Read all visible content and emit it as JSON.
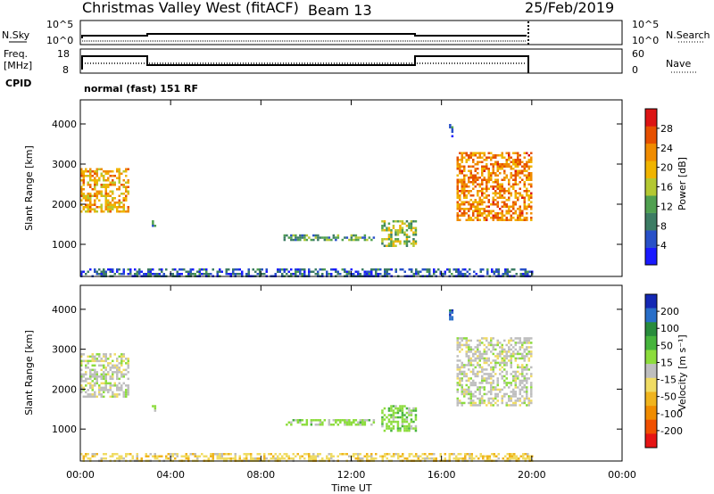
{
  "header": {
    "station": "Christmas Valley West (fitACF)",
    "beam": "Beam 13",
    "date": "25/Feb/2019"
  },
  "sky_panel": {
    "left_label": "N.Sky",
    "left_ticks": [
      "10^5",
      "10^0"
    ],
    "right_label": "N.Search",
    "right_ticks": [
      "10^5",
      "10^0"
    ]
  },
  "freq_panel": {
    "left_label_1": "Freq.",
    "left_label_2": "[MHz]",
    "left_ticks": [
      "18",
      "8"
    ],
    "right_label": "Nave",
    "right_ticks": [
      "60",
      "0"
    ],
    "cpid_label": "CPID",
    "cpid_text": "normal (fast) 151 RF"
  },
  "axes": {
    "xlabel": "Time UT",
    "xticks": [
      "00:00",
      "04:00",
      "08:00",
      "12:00",
      "16:00",
      "20:00",
      "00:00"
    ],
    "ylabel": "Slant Range [km]",
    "yticks": [
      "1000",
      "2000",
      "3000",
      "4000"
    ]
  },
  "power_scale": {
    "label": "Power [dB]",
    "ticks": [
      "4",
      "8",
      "12",
      "16",
      "20",
      "24",
      "28"
    ],
    "colors": [
      "#1a1aff",
      "#2850c8",
      "#3c7c64",
      "#50a050",
      "#b4c832",
      "#f0b400",
      "#f08c00",
      "#e65000",
      "#dc1414"
    ]
  },
  "velocity_scale": {
    "label": "Velocity [m s⁻¹]",
    "ticks": [
      "200",
      "100",
      "50",
      "15",
      "-15",
      "-50",
      "-100",
      "-200"
    ],
    "colors": [
      "#1428b4",
      "#286ec8",
      "#288c3c",
      "#46b43c",
      "#8cdc3c",
      "#bebebe",
      "#f0dc64",
      "#f0b41e",
      "#f08c00",
      "#f05000",
      "#e61414"
    ]
  },
  "chart_data": [
    {
      "type": "heatmap",
      "title": "Power [dB]",
      "xlabel": "Time UT",
      "ylabel": "Slant Range [km]",
      "xlim": [
        "00:00",
        "24:00"
      ],
      "ylim": [
        200,
        4600
      ],
      "colorbar_range": [
        0,
        30
      ],
      "regions": [
        {
          "time": [
            "00:00",
            "02:10"
          ],
          "range_km": [
            1800,
            2900
          ],
          "power_db": 20
        },
        {
          "time": [
            "03:10",
            "03:20"
          ],
          "range_km": [
            1450,
            1600
          ],
          "power_db": 8
        },
        {
          "time": [
            "09:00",
            "13:00"
          ],
          "range_km": [
            1100,
            1250
          ],
          "power_db": 10
        },
        {
          "time": [
            "13:20",
            "14:50"
          ],
          "range_km": [
            950,
            1600
          ],
          "power_db": 14
        },
        {
          "time": [
            "16:40",
            "20:00"
          ],
          "range_km": [
            1600,
            3300
          ],
          "power_db": 22
        },
        {
          "time": [
            "16:20",
            "16:30"
          ],
          "range_km": [
            3700,
            4000
          ],
          "power_db": 8
        },
        {
          "time": [
            "00:00",
            "20:00"
          ],
          "range_km": [
            200,
            400
          ],
          "power_db": 6
        }
      ]
    },
    {
      "type": "heatmap",
      "title": "Velocity [m s⁻¹]",
      "xlabel": "Time UT",
      "ylabel": "Slant Range [km]",
      "xlim": [
        "00:00",
        "24:00"
      ],
      "ylim": [
        200,
        4600
      ],
      "colorbar_range": [
        -200,
        200
      ],
      "regions": [
        {
          "time": [
            "00:00",
            "02:10"
          ],
          "range_km": [
            1800,
            2900
          ],
          "velocity": 0
        },
        {
          "time": [
            "03:10",
            "03:20"
          ],
          "range_km": [
            1450,
            1600
          ],
          "velocity": 30
        },
        {
          "time": [
            "09:00",
            "13:00"
          ],
          "range_km": [
            1100,
            1250
          ],
          "velocity": 30
        },
        {
          "time": [
            "13:20",
            "14:50"
          ],
          "range_km": [
            950,
            1600
          ],
          "velocity": 40
        },
        {
          "time": [
            "16:40",
            "20:00"
          ],
          "range_km": [
            1600,
            3300
          ],
          "velocity": 0
        },
        {
          "time": [
            "16:20",
            "16:30"
          ],
          "range_km": [
            3700,
            4000
          ],
          "velocity": 150
        },
        {
          "time": [
            "00:00",
            "20:00"
          ],
          "range_km": [
            200,
            400
          ],
          "velocity": -40
        }
      ]
    }
  ]
}
